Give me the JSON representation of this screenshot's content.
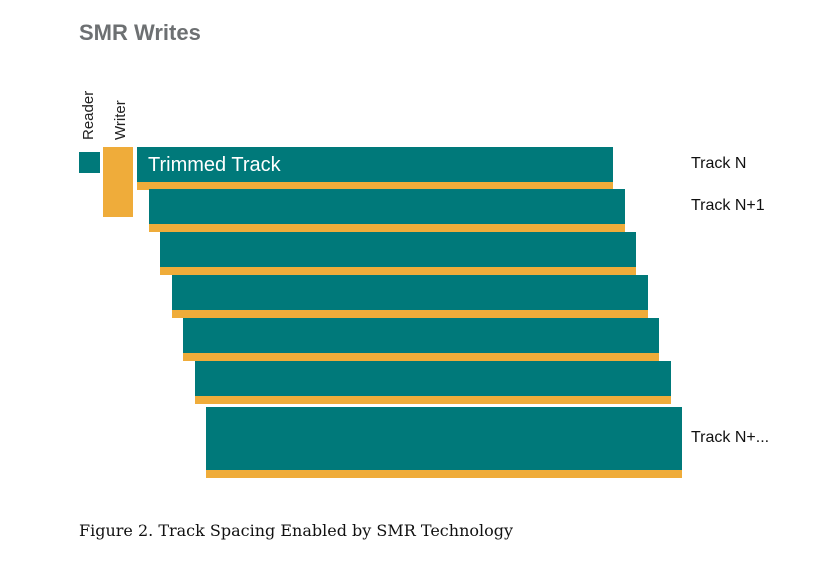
{
  "diagram": {
    "title": "SMR Writes",
    "reader_label": "Reader",
    "writer_label": "Writer",
    "trimmed_track_label": "Trimmed Track",
    "track_labels": {
      "first": "Track N",
      "second": "Track N+1",
      "last": "Track N+..."
    },
    "colors": {
      "track": "#00797a",
      "write_overlap": "#efac3a",
      "title": "#6d7072"
    }
  },
  "caption": "Figure 2. Track Spacing Enabled by SMR Technology"
}
